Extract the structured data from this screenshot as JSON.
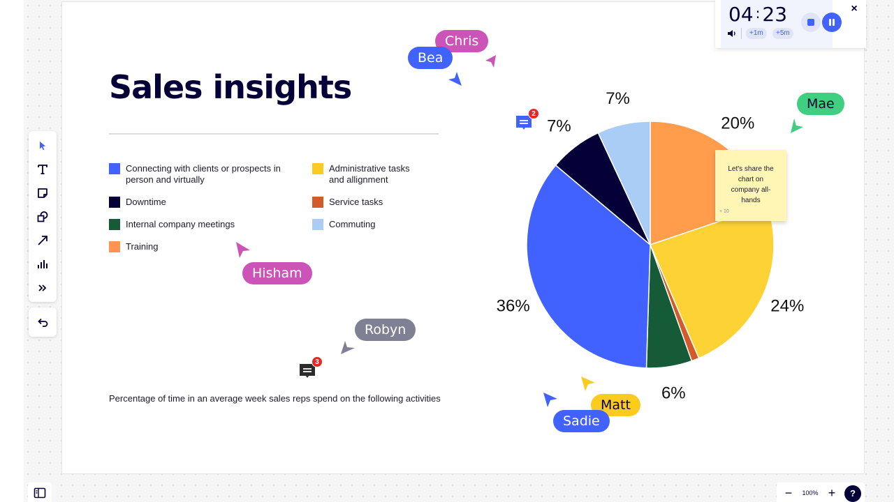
{
  "board": {
    "title": "Sales insights",
    "caption": "Percentage of time in an average week sales reps spend on the following activities"
  },
  "legend": [
    {
      "label": "Connecting with clients or prospects in person and virtually",
      "color": "#4262ff"
    },
    {
      "label": "Administrative tasks and allignment",
      "color": "#fccb1f"
    },
    {
      "label": "Downtime",
      "color": "#050038"
    },
    {
      "label": "Service tasks",
      "color": "#d35a2b"
    },
    {
      "label": "Internal company meetings",
      "color": "#165b38"
    },
    {
      "label": "Commuting",
      "color": "#a9cdf5"
    },
    {
      "label": "Training",
      "color": "#ff9354"
    }
  ],
  "chart_data": {
    "type": "pie",
    "slices": [
      {
        "category": "Training",
        "value": 20,
        "label": "20%",
        "color": "#ff9d4d"
      },
      {
        "category": "Administrative tasks and allignment",
        "value": 24,
        "label": "24%",
        "color": "#fdd235"
      },
      {
        "category": "Service tasks",
        "value": 1,
        "label": "",
        "color": "#d35a2b"
      },
      {
        "category": "Internal company meetings",
        "value": 6,
        "label": "6%",
        "color": "#165b38"
      },
      {
        "category": "Connecting with clients or prospects in person and virtually",
        "value": 36,
        "label": "36%",
        "color": "#4262ff"
      },
      {
        "category": "Downtime",
        "value": 7,
        "label": "7%",
        "color": "#050038"
      },
      {
        "category": "Commuting",
        "value": 7,
        "label": "7%",
        "color": "#a9cdf5"
      }
    ]
  },
  "timer": {
    "minutes": "04",
    "separator": ":",
    "seconds": "23",
    "add1": "+1m",
    "add5": "+5m",
    "close": "×"
  },
  "sticky_note": {
    "text": "Let's share the chart on company all-hands",
    "reaction": "+ 10"
  },
  "comments": [
    {
      "count": "2",
      "color": "#4262ff"
    },
    {
      "count": "3",
      "color": "#2b2b2b"
    }
  ],
  "cursors": [
    {
      "name": "Chris",
      "color": "#cc54b8",
      "text_color": "#ffffff"
    },
    {
      "name": "Bea",
      "color": "#4262ff",
      "text_color": "#ffffff"
    },
    {
      "name": "Mae",
      "color": "#3fcf80",
      "text_color": "#050038"
    },
    {
      "name": "Hisham",
      "color": "#cc54b8",
      "text_color": "#ffffff"
    },
    {
      "name": "Robyn",
      "color": "#808094",
      "text_color": "#ffffff"
    },
    {
      "name": "Matt",
      "color": "#fccb1f",
      "text_color": "#050038"
    },
    {
      "name": "Sadie",
      "color": "#4262ff",
      "text_color": "#ffffff"
    }
  ],
  "zoom": {
    "minus": "−",
    "value": "100%",
    "plus": "+",
    "help": "?"
  },
  "icons": {
    "select": "cursor-icon",
    "text": "text-icon",
    "sticky": "sticky-note-icon",
    "shapes": "shapes-icon",
    "line": "arrow-line-icon",
    "chart": "chart-icon",
    "more": "more-icon",
    "undo": "undo-icon",
    "panel": "panel-icon"
  }
}
